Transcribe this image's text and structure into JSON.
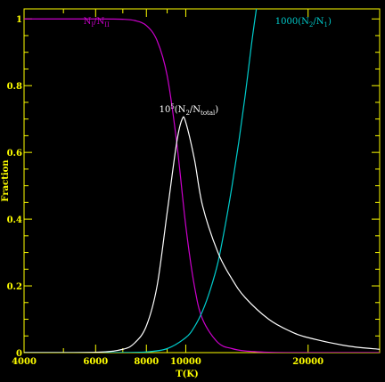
{
  "chart_data": {
    "type": "line",
    "xlabel": "T(K)",
    "ylabel": "Fraction",
    "xscale": "log",
    "xlim": [
      4000,
      30000
    ],
    "ylim": [
      0,
      1.03
    ],
    "xticks": [
      {
        "value": 4000,
        "label": "4000"
      },
      {
        "value": 6000,
        "label": "6000"
      },
      {
        "value": 8000,
        "label": "8000"
      },
      {
        "value": 10000,
        "label": "10000"
      },
      {
        "value": 20000,
        "label": "20000"
      }
    ],
    "xminorticks": [
      5000,
      7000,
      9000,
      30000
    ],
    "yticks": [
      {
        "value": 0,
        "label": "0"
      },
      {
        "value": 0.2,
        "label": "0.2"
      },
      {
        "value": 0.4,
        "label": "0.4"
      },
      {
        "value": 0.6,
        "label": "0.6"
      },
      {
        "value": 0.8,
        "label": "0.8"
      },
      {
        "value": 1.0,
        "label": "1"
      }
    ],
    "axis_color": "#ffff00",
    "background": "#000000",
    "series": [
      {
        "name": "N1/NII",
        "label_main": "N",
        "label_sub1": "I",
        "label_mid": "/N",
        "label_sub2": "II",
        "label_post": "",
        "label_at": [
          5600,
          0.985
        ],
        "color": "#cc00cc",
        "x": [
          4000,
          6000,
          7000,
          7500,
          8000,
          8500,
          9000,
          9500,
          10000,
          10500,
          11000,
          12000,
          13000,
          14000,
          16000,
          18000,
          20000,
          25000,
          30000
        ],
        "y": [
          1.0,
          1.0,
          0.999,
          0.995,
          0.98,
          0.935,
          0.83,
          0.63,
          0.38,
          0.2,
          0.1,
          0.03,
          0.012,
          0.005,
          0.001,
          0.0,
          0.0,
          0.0,
          0.0
        ]
      },
      {
        "name": "1000(N2/N1)",
        "label_main": "1000(N",
        "label_sub1": "2",
        "label_mid": "/N",
        "label_sub2": "1",
        "label_post": ")",
        "label_at": [
          16600,
          0.985
        ],
        "color": "#00cccc",
        "x": [
          4000,
          6000,
          7000,
          8000,
          9000,
          10000,
          10500,
          11000,
          11500,
          12000,
          12500,
          13000,
          13500,
          14000,
          14500,
          14800,
          15000
        ],
        "y": [
          0.0,
          0.0,
          0.0003,
          0.002,
          0.012,
          0.045,
          0.077,
          0.125,
          0.19,
          0.27,
          0.38,
          0.5,
          0.63,
          0.77,
          0.92,
          1.0,
          1.05
        ]
      },
      {
        "name": "10^5(N2/Ntotal)",
        "label_main": "10",
        "label_sup": "5",
        "label_main2": "(N",
        "label_sub1": "2",
        "label_mid": "/N",
        "label_sub2": "total",
        "label_post": ")",
        "label_at": [
          8600,
          0.72
        ],
        "color": "#ffffff",
        "x": [
          4000,
          6000,
          7000,
          7500,
          8000,
          8500,
          9000,
          9500,
          9800,
          10000,
          10500,
          11000,
          12000,
          13000,
          14000,
          16000,
          18000,
          20000,
          25000,
          30000
        ],
        "y": [
          0.0,
          0.001,
          0.01,
          0.03,
          0.08,
          0.2,
          0.42,
          0.63,
          0.7,
          0.69,
          0.58,
          0.44,
          0.3,
          0.22,
          0.165,
          0.1,
          0.065,
          0.045,
          0.02,
          0.01
        ]
      }
    ]
  }
}
